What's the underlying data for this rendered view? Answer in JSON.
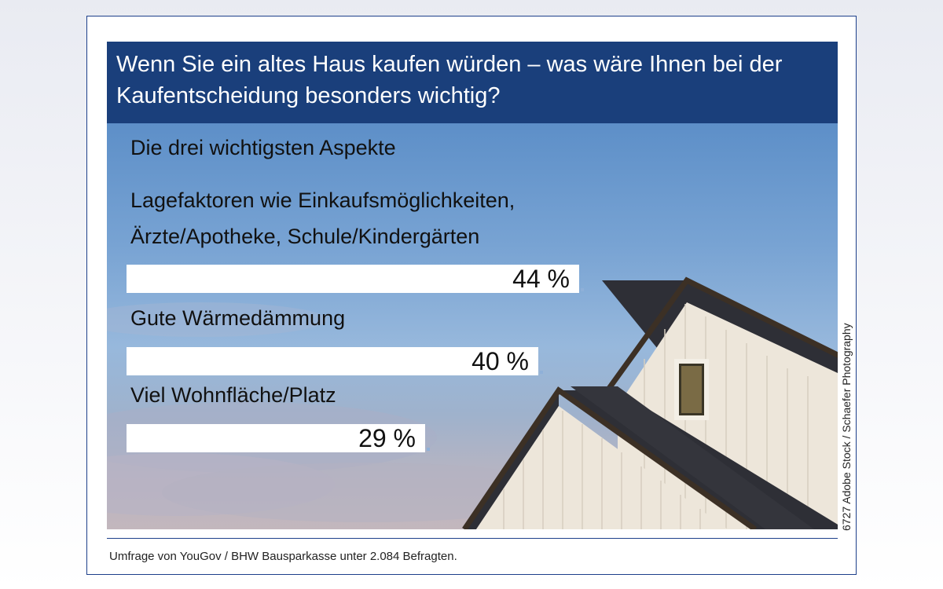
{
  "header": {
    "title": "Wenn Sie ein altes Haus kaufen würden – was wäre Ihnen bei der Kaufentscheidung besonders wichtig?"
  },
  "chart_data": {
    "type": "bar",
    "orientation": "horizontal",
    "subtitle": "Die drei wichtigsten Aspekte",
    "categories": [
      "Lagefaktoren wie Einkaufsmöglichkeiten, Ärzte/Apotheke, Schule/Kindergärten",
      "Gute Wärmedämmung",
      "Viel Wohnfläche/Platz"
    ],
    "category_lines": [
      [
        "Lagefaktoren wie Einkaufsmöglichkeiten,",
        "Ärzte/Apotheke, Schule/Kindergärten"
      ],
      [
        "Gute Wärmedämmung"
      ],
      [
        "Viel Wohnfläche/Platz"
      ]
    ],
    "values": [
      44,
      40,
      29
    ],
    "value_labels": [
      "44 %",
      "40 %",
      "29 %"
    ],
    "unit": "%",
    "xlim": [
      0,
      50
    ],
    "bar_color": "#ffffff"
  },
  "credit": "6727 Adobe Stock / Schaefer Photography",
  "source": "Umfrage von YouGov / BHW Bausparkasse unter 2.084 Befragten.",
  "colors": {
    "header_bg": "#1a3f7b",
    "border": "#1d3f8a",
    "sky_top": "#5d8fc8",
    "roof": "#2e2f36",
    "siding": "#ede6da"
  }
}
